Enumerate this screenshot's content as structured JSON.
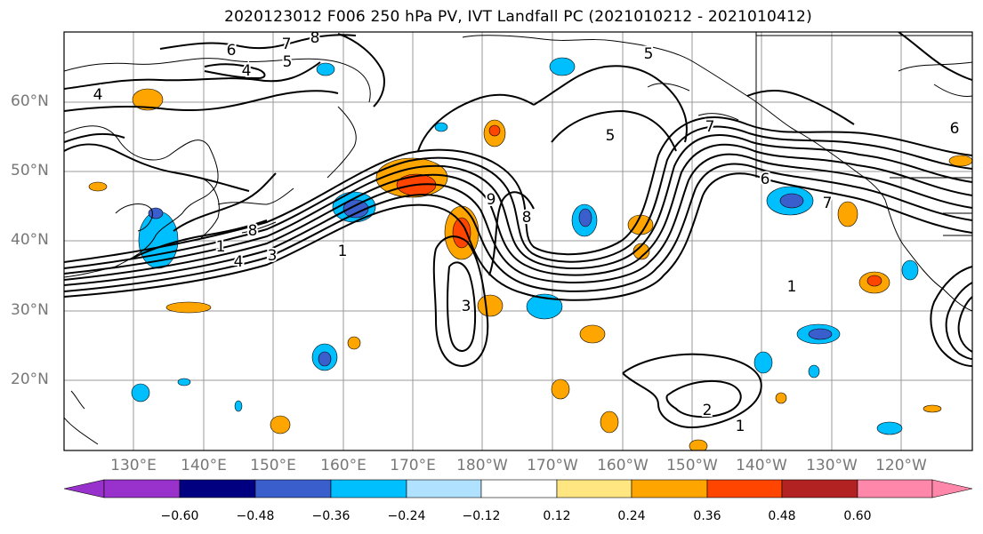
{
  "title": "2020123012 F006 250 hPa PV, IVT Landfall PC (2021010212 - 2021010412)",
  "map": {
    "lat_labels": [
      "60°N",
      "50°N",
      "40°N",
      "30°N",
      "20°N"
    ],
    "lon_labels": [
      "130°E",
      "140°E",
      "150°E",
      "160°E",
      "170°E",
      "180°W",
      "170°W",
      "160°W",
      "150°W",
      "140°W",
      "130°W",
      "120°W"
    ],
    "contour_labels": [
      "6",
      "7",
      "8",
      "5",
      "4",
      "4",
      "8",
      "1",
      "4",
      "3",
      "1",
      "9",
      "8",
      "3",
      "5",
      "5",
      "7",
      "6",
      "7",
      "6",
      "2",
      "1",
      "1"
    ],
    "gridlines": true
  },
  "colorbar": {
    "colors": [
      "#9932cc",
      "#000080",
      "#3a5fcd",
      "#00bfff",
      "#b0e2ff",
      "#ffffff",
      "#ffe680",
      "#ffa500",
      "#ff4500",
      "#b22222",
      "#ff88aa"
    ],
    "tick_labels": [
      "−0.60",
      "−0.48",
      "−0.36",
      "−0.24",
      "−0.12",
      "0.12",
      "0.24",
      "0.36",
      "0.48",
      "0.60"
    ]
  }
}
